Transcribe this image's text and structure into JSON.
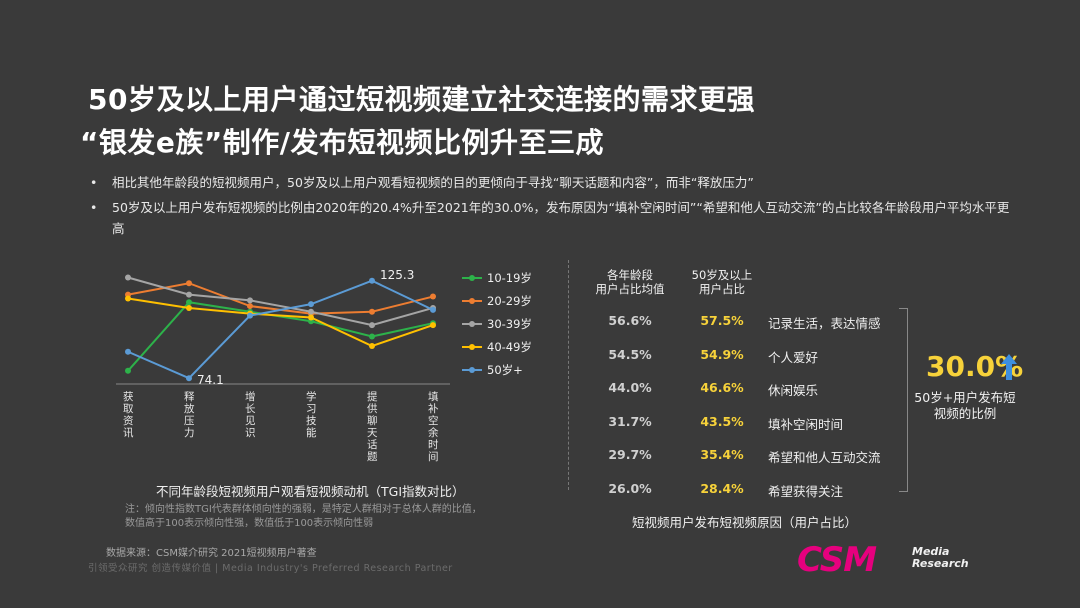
{
  "header": {
    "title_line1": "50岁及以上用户通过短视频建立社交连接的需求更强",
    "title_line2": "“银发e族”制作/发布短视频比例升至三成"
  },
  "bullets": [
    {
      "dot": "•",
      "text": "相比其他年龄段的短视频用户，50岁及以上用户观看短视频的目的更倾向于寻找“聊天话题和内容”，而非“释放压力”"
    },
    {
      "dot": "•",
      "text": "50岁及以上用户发布短视频的比例由2020年的20.4%升至2021年的30.0%，发布原因为“填补空闲时间”“希望和他人互动交流”的占比较各年龄段用户平均水平更高"
    }
  ],
  "chart_data": [
    {
      "type": "line",
      "title": "不同年龄段短视频用户观看短视频动机（TGI指数对比）",
      "categories": [
        "获取资讯",
        "释放压力",
        "增长见识",
        "学习技能",
        "提供聊天话题",
        "填补空余时间"
      ],
      "series": [
        {
          "name": "10-19岁",
          "color": "#2db24a",
          "values": [
            78,
            114,
            109,
            104,
            96,
            103
          ]
        },
        {
          "name": "20-29岁",
          "color": "#ed7d31",
          "values": [
            118,
            124,
            112,
            108,
            109,
            117
          ]
        },
        {
          "name": "30-39岁",
          "color": "#a5a5a5",
          "values": [
            127,
            118,
            115,
            109,
            102,
            111
          ]
        },
        {
          "name": "40-49岁",
          "color": "#ffc000",
          "values": [
            116,
            111,
            108,
            106,
            91,
            102
          ]
        },
        {
          "name": "50岁+",
          "color": "#5b9bd5",
          "values": [
            88,
            74.1,
            107,
            113,
            125.3,
            110
          ]
        }
      ],
      "data_labels": [
        {
          "series": "50岁+",
          "category": "释放压力",
          "text": "74.1"
        },
        {
          "series": "50岁+",
          "category": "提供聊天话题",
          "text": "125.3"
        }
      ],
      "ylim": [
        70,
        132
      ],
      "xlabel": "",
      "ylabel": "",
      "grid": false,
      "legend": "right"
    },
    {
      "type": "table",
      "title": "短视频用户发布短视频原因（用户占比）",
      "columns": [
        "各年龄段\n用户占比均值",
        "50岁及以上\n用户占比",
        ""
      ],
      "rows": [
        [
          "56.6%",
          "57.5%",
          "记录生活，表达情感"
        ],
        [
          "54.5%",
          "54.9%",
          "个人爱好"
        ],
        [
          "44.0%",
          "46.6%",
          "休闲娱乐"
        ],
        [
          "31.7%",
          "43.5%",
          "填补空闲时间"
        ],
        [
          "29.7%",
          "35.4%",
          "希望和他人互动交流"
        ],
        [
          "26.0%",
          "28.4%",
          "希望获得关注"
        ]
      ]
    }
  ],
  "right": {
    "head_avg": "各年龄段\n用户占比均值",
    "head_avg_l1": "各年龄段",
    "head_avg_l2": "用户占比均值",
    "head_50_l1": "50岁及以上",
    "head_50_l2": "用户占比",
    "big_number": "30.0%",
    "big_sub": "50岁+用户发布短视频的比例"
  },
  "footer": {
    "note_line1": "注：倾向性指数TGI代表群体倾向性的强弱，是特定人群相对于总体人群的比值，",
    "note_line2": "数值高于100表示倾向性强，数值低于100表示倾向性弱",
    "source": "数据来源：CSM媒介研究 2021短视频用户著查",
    "slogan": "引领受众研究 创造传媒价值 | Media Industry's Preferred Research Partner",
    "logo_main": "CSM",
    "logo_sub1": "Media",
    "logo_sub2": "Research"
  },
  "colors": {
    "background": "#3a3a3a",
    "accent_yellow": "#f7d23a",
    "arrow_blue": "#3d8fe0",
    "logo_magenta": "#e6007e"
  },
  "icons": {
    "arrow": "arrow-up-icon"
  }
}
